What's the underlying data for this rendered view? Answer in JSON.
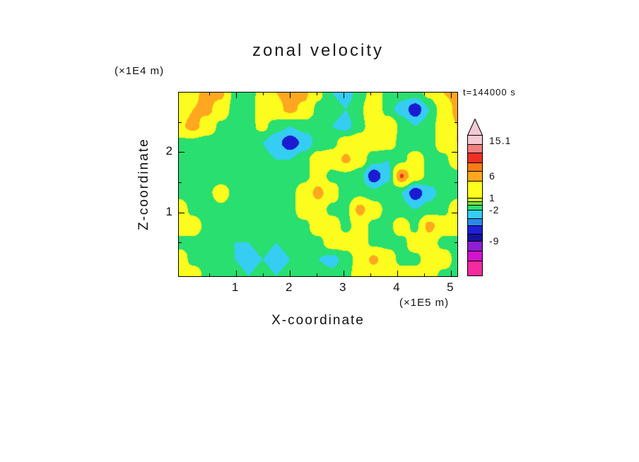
{
  "chart_data": {
    "type": "heatmap",
    "title": "zonal velocity",
    "annotation": "t=144000 s",
    "xlabel": "X-coordinate",
    "ylabel": "Z-coordinate",
    "x_units": "(×1E5 m)",
    "y_units": "(×1E4 m)",
    "x_ticks": [
      "1",
      "2",
      "3",
      "4",
      "5"
    ],
    "y_ticks": [
      "1",
      "2"
    ],
    "x_tick_values": [
      1,
      2,
      3,
      4,
      5
    ],
    "y_tick_values": [
      1,
      2
    ],
    "x_minor_ticks": [
      0.5,
      1.5,
      2.5,
      3.5,
      4.5
    ],
    "y_minor_ticks": [
      0.5,
      1.5,
      2.5
    ],
    "xlim": [
      -0.06,
      5.12
    ],
    "ylim": [
      -0.06,
      2.99
    ],
    "legend_position": "right",
    "grid": false,
    "colorbar": {
      "arrow_color": "#f6c9d2",
      "labels": [
        {
          "text": "15.1",
          "y": 7
        },
        {
          "text": "6",
          "y": 57
        },
        {
          "text": "1",
          "y": 88
        },
        {
          "text": "-2",
          "y": 105
        },
        {
          "text": "-9",
          "y": 149
        }
      ],
      "segments": [
        {
          "color": "#f6c9d2",
          "h": 12
        },
        {
          "color": "#f08080",
          "h": 12
        },
        {
          "color": "#ee3124",
          "h": 14
        },
        {
          "color": "#f97b16",
          "h": 12
        },
        {
          "color": "#ffa81f",
          "h": 14
        },
        {
          "color": "#fdfd1f",
          "h": 24
        },
        {
          "color": "#cdea28",
          "h": 5
        },
        {
          "color": "#7ade3c",
          "h": 5
        },
        {
          "color": "#29df70",
          "h": 7
        },
        {
          "color": "#35cdf2",
          "h": 12
        },
        {
          "color": "#2a8ae8",
          "h": 10
        },
        {
          "color": "#1f1fd6",
          "h": 12
        },
        {
          "color": "#14149e",
          "h": 10
        },
        {
          "color": "#8c1fd2",
          "h": 14
        },
        {
          "color": "#d214c8",
          "h": 14
        },
        {
          "color": "#f22b9e",
          "h": 21
        }
      ]
    },
    "field": {
      "comment": "coarse estimate of zonal velocity field read from fill colors, rows top(y=2.9) to bottom(y=0), cols x=0..5.25",
      "bands": [
        {
          "max": -5,
          "color": "#1b1bd2"
        },
        {
          "max": -2,
          "color": "#35cdf2"
        },
        {
          "max": 1,
          "color": "#29df70"
        },
        {
          "max": 6,
          "color": "#fcfc1e"
        },
        {
          "max": 9,
          "color": "#ffa81f"
        },
        {
          "max": 12,
          "color": "#ee3124"
        },
        {
          "max": 99,
          "color": "#f6c9d2"
        }
      ],
      "values": [
        [
          3,
          5,
          7.5,
          7,
          0,
          -1,
          3,
          6,
          7.5,
          7,
          2,
          -2,
          -3,
          -1,
          3,
          0,
          -1,
          -0.5,
          2,
          6,
          7.5
        ],
        [
          3,
          6,
          7,
          4,
          -0.5,
          -0.5,
          3,
          5,
          7,
          5,
          0,
          -1,
          -2,
          0,
          6,
          -1,
          -3,
          -7,
          -2,
          3,
          7
        ],
        [
          5,
          7.5,
          4,
          0,
          -1,
          0,
          2,
          -1,
          -2,
          -1,
          -1,
          -2,
          -3,
          0,
          3,
          5,
          0,
          -2,
          -0.5,
          3,
          6
        ],
        [
          0,
          -0.5,
          -1,
          -1,
          0,
          0,
          -2,
          -4,
          -7,
          -4,
          -1,
          0,
          3,
          3,
          3,
          3,
          0,
          -1,
          -0.5,
          3,
          6
        ],
        [
          0,
          -1,
          -1,
          -0.5,
          -1,
          0,
          -1,
          -2,
          -2,
          0,
          3,
          3,
          7,
          3,
          -1,
          -2,
          0,
          3,
          0,
          0,
          3
        ],
        [
          -1,
          -2,
          -1,
          -1,
          -0.5,
          -1,
          0,
          -2,
          -1,
          0,
          3,
          0,
          0,
          -1,
          -7,
          -3,
          9.5,
          3,
          0,
          -1,
          0
        ],
        [
          0,
          -0.5,
          0,
          3,
          0,
          -1,
          -1,
          0,
          0,
          3,
          7.5,
          3,
          -1,
          0,
          -1,
          0,
          -2,
          -7,
          -3,
          -1,
          0
        ],
        [
          3,
          0,
          -1,
          0,
          -1,
          -2,
          -1,
          -1,
          0,
          3,
          3,
          0,
          0,
          7.5,
          3,
          0,
          -1,
          -2,
          -1,
          0,
          3
        ],
        [
          3,
          3,
          0,
          -1,
          -1,
          -1,
          -2,
          -1,
          0,
          0,
          3,
          3,
          0,
          3,
          0,
          0,
          3,
          0,
          7.5,
          3,
          3
        ],
        [
          0,
          0,
          -1,
          0,
          -2,
          -2,
          -1,
          -2,
          -1,
          0,
          0,
          3,
          3,
          3,
          0,
          0,
          0,
          3,
          3,
          0,
          0
        ],
        [
          3,
          0,
          0,
          -1,
          -2,
          -3,
          -2,
          -3,
          -2,
          0,
          -2,
          -3,
          -1,
          3,
          7,
          3,
          0,
          0,
          3,
          3,
          0
        ],
        [
          3,
          3,
          0,
          0,
          -1,
          -2,
          -1,
          -2,
          -1,
          -1,
          0,
          -1,
          0,
          3,
          3,
          3,
          3,
          3,
          3,
          0,
          0
        ]
      ]
    }
  }
}
